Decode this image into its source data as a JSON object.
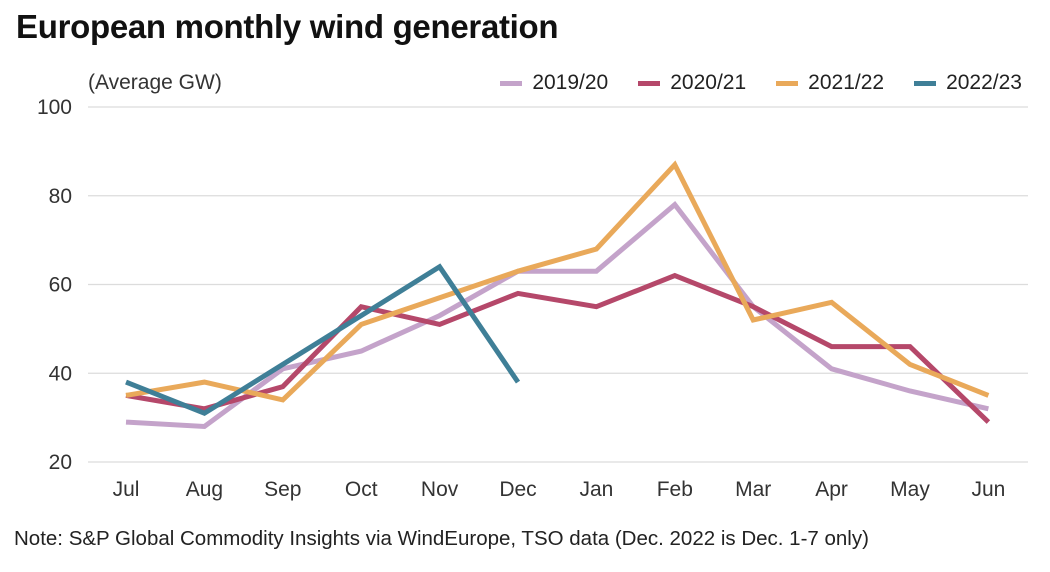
{
  "chart_data": {
    "type": "line",
    "title": "European monthly wind generation",
    "ylabel": "(Average GW)",
    "xlabel": "",
    "ylim": [
      20,
      100
    ],
    "yticks": [
      20,
      40,
      60,
      80,
      100
    ],
    "grid": true,
    "legend_position": "top-right",
    "categories": [
      "Jul",
      "Aug",
      "Sep",
      "Oct",
      "Nov",
      "Dec",
      "Jan",
      "Feb",
      "Mar",
      "Apr",
      "May",
      "Jun"
    ],
    "series": [
      {
        "name": "2019/20",
        "color": "#C4A3CA",
        "values": [
          29,
          28,
          41,
          45,
          53,
          63,
          63,
          78,
          55,
          41,
          36,
          32
        ]
      },
      {
        "name": "2020/21",
        "color": "#B5486A",
        "values": [
          35,
          32,
          37,
          55,
          51,
          58,
          55,
          62,
          55,
          46,
          46,
          29
        ]
      },
      {
        "name": "2021/22",
        "color": "#E9A95A",
        "values": [
          35,
          38,
          34,
          51,
          57,
          63,
          68,
          87,
          52,
          56,
          42,
          35
        ]
      },
      {
        "name": "2022/23",
        "color": "#3F7F97",
        "values": [
          38,
          31,
          42,
          53,
          64,
          38
        ]
      }
    ],
    "note": "Note: S&P Global Commodity Insights via WindEurope, TSO data (Dec. 2022 is Dec. 1-7 only)"
  }
}
